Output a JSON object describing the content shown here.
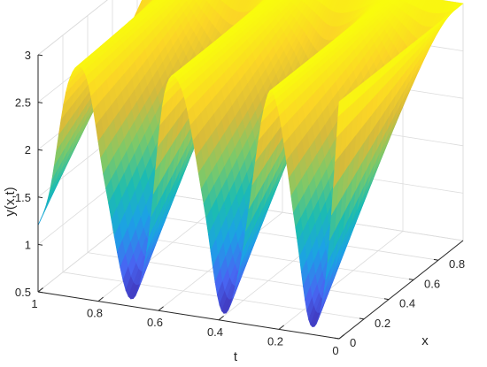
{
  "chart_data": {
    "type": "surface",
    "title": "",
    "xlabel": "t",
    "ylabel": "x",
    "zlabel": "y(x,t)",
    "t_range": [
      0,
      1
    ],
    "x_range": [
      0,
      1
    ],
    "z_range": [
      0.5,
      3
    ],
    "t_ticks": [
      0,
      0.2,
      0.4,
      0.6,
      0.8,
      1
    ],
    "t_tick_labels": [
      "0",
      "0.2",
      "0.4",
      "0.6",
      "0.8",
      "1"
    ],
    "x_ticks": [
      0,
      0.2,
      0.4,
      0.6,
      0.8
    ],
    "x_tick_labels": [
      "0",
      "0.2",
      "0.4",
      "0.6",
      "0.8"
    ],
    "z_ticks": [
      0.5,
      1,
      1.5,
      2,
      2.5,
      3
    ],
    "z_tick_labels": [
      "0.5",
      "1",
      "1.5",
      "2",
      "2.5",
      "3"
    ],
    "grid": true,
    "colormap": "parula",
    "colormap_stops": [
      "#3e26a8",
      "#4866f2",
      "#1ca1e6",
      "#1cbcb1",
      "#7bc96a",
      "#d7ba3a",
      "#fbd526",
      "#f9fb0e"
    ],
    "surface": {
      "profile_t": [
        0,
        0.045,
        0.095,
        0.145,
        0.205,
        0.25,
        0.33,
        0.39,
        0.45,
        0.52,
        0.58,
        0.64,
        0.7,
        0.775,
        0.84,
        0.9,
        0.96,
        1
      ],
      "profile_y_at_x0": [
        3.0,
        1.1,
        0.6,
        1.6,
        2.85,
        2.8,
        1.1,
        0.6,
        1.7,
        2.85,
        2.8,
        1.1,
        0.6,
        1.7,
        2.85,
        2.75,
        1.6,
        1.2
      ],
      "y_at_x1": 3.0
    }
  }
}
